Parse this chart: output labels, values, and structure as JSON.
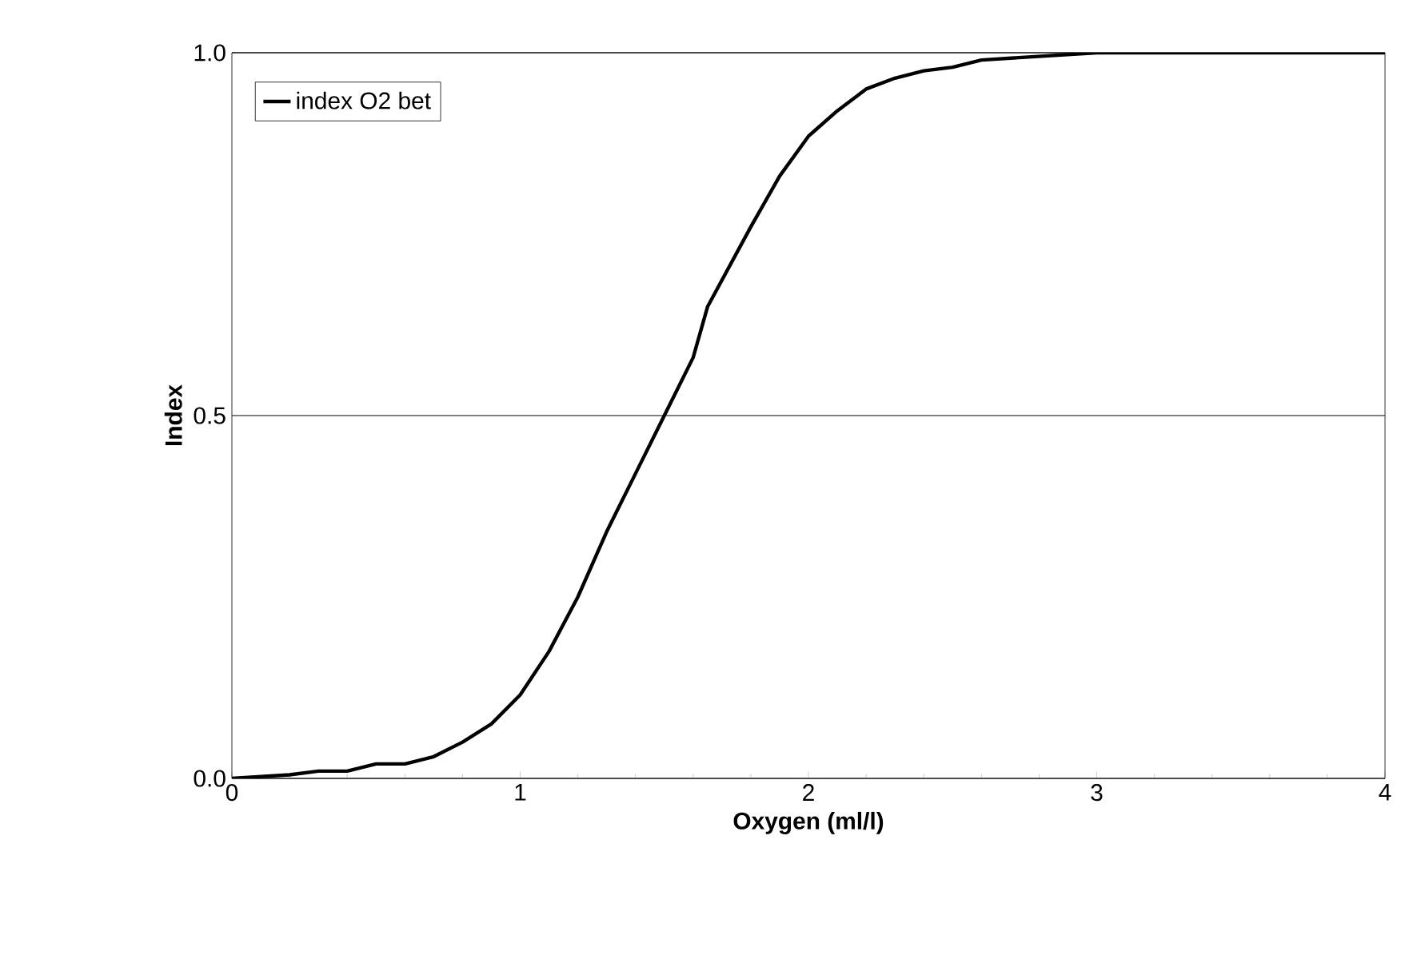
{
  "chart_data": {
    "type": "line",
    "xlabel": "Oxygen (ml/l)",
    "ylabel": "Index",
    "xlim": [
      0,
      4
    ],
    "ylim": [
      0,
      1
    ],
    "xticks": [
      0,
      1,
      2,
      3,
      4
    ],
    "yticks": [
      {
        "value": 0,
        "label": "0.0"
      },
      {
        "value": 0.5,
        "label": "0.5"
      },
      {
        "value": 1,
        "label": "1.0"
      }
    ],
    "grid": "y",
    "legend": "top left",
    "marker": "none",
    "line_style": "solid",
    "series": [
      {
        "name": "index O2 bet",
        "color": "#000000",
        "x": [
          0,
          0.2,
          0.3,
          0.4,
          0.5,
          0.6,
          0.7,
          0.75,
          0.8,
          0.9,
          1.0,
          1.1,
          1.2,
          1.3,
          1.4,
          1.5,
          1.6,
          1.65,
          1.8,
          1.9,
          2.0,
          2.1,
          2.2,
          2.3,
          2.4,
          2.5,
          2.6,
          2.8,
          3.0,
          4.0
        ],
        "values": [
          0,
          0.005,
          0.01,
          0.01,
          0.02,
          0.02,
          0.03,
          0.04,
          0.05,
          0.075,
          0.115,
          0.175,
          0.25,
          0.34,
          0.42,
          0.5,
          0.58,
          0.65,
          0.76,
          0.83,
          0.885,
          0.92,
          0.95,
          0.965,
          0.975,
          0.98,
          0.99,
          0.995,
          1.0,
          1.0
        ]
      }
    ]
  }
}
